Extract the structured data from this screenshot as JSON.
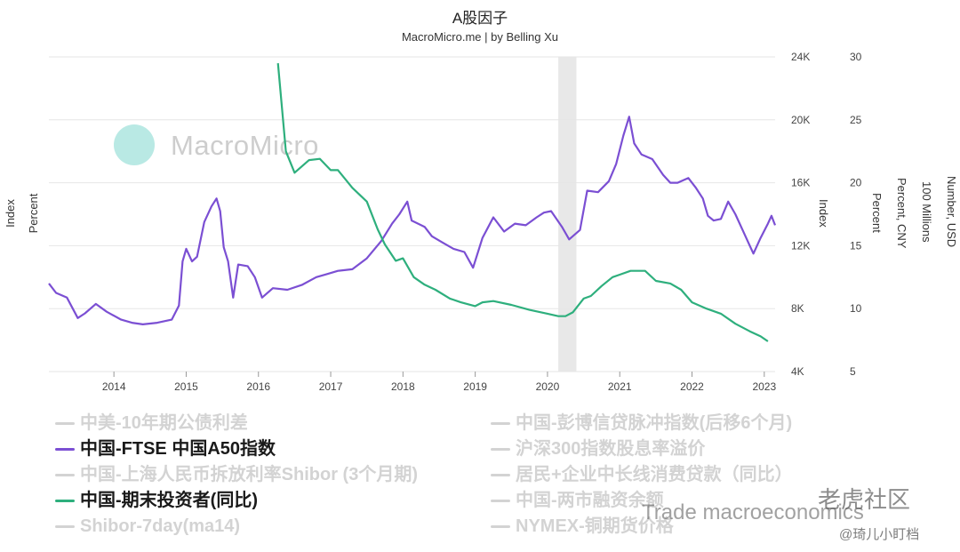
{
  "chart_data": {
    "type": "line",
    "title": "A股因子",
    "subtitle": "MacroMicro.me | by Belling Xu",
    "watermark": "MacroMicro",
    "x_ticks": [
      "2014",
      "2015",
      "2016",
      "2017",
      "2018",
      "2019",
      "2020",
      "2021",
      "2022",
      "2023"
    ],
    "x_range": [
      2013.1,
      2023.15
    ],
    "shaded_period": [
      2020.15,
      2020.4
    ],
    "axes": {
      "left_labels": [
        "Index",
        "Percent"
      ],
      "index_axis": {
        "label": "Index",
        "ticks": [
          "24K",
          "20K",
          "16K",
          "12K",
          "8K",
          "4K"
        ],
        "range": [
          4000,
          24000
        ]
      },
      "percent_axis": {
        "label": "Percent",
        "ticks": [
          "30",
          "25",
          "20",
          "15",
          "10",
          "5"
        ],
        "range": [
          5,
          30
        ]
      },
      "extra_labels": [
        "Percent, CNY",
        "100 Millions",
        "Number, USD"
      ]
    },
    "grid": true,
    "legend_position": "bottom",
    "series": [
      {
        "name": "中国-FTSE 中国A50指数",
        "color": "#7b4fd3",
        "axis": "index",
        "points": [
          [
            2013.1,
            9600
          ],
          [
            2013.2,
            9000
          ],
          [
            2013.35,
            8700
          ],
          [
            2013.5,
            7400
          ],
          [
            2013.6,
            7700
          ],
          [
            2013.75,
            8300
          ],
          [
            2013.9,
            7800
          ],
          [
            2014.1,
            7300
          ],
          [
            2014.25,
            7100
          ],
          [
            2014.4,
            7000
          ],
          [
            2014.6,
            7100
          ],
          [
            2014.8,
            7300
          ],
          [
            2014.9,
            8200
          ],
          [
            2014.95,
            11000
          ],
          [
            2015.0,
            11800
          ],
          [
            2015.08,
            11000
          ],
          [
            2015.15,
            11300
          ],
          [
            2015.25,
            13500
          ],
          [
            2015.35,
            14500
          ],
          [
            2015.42,
            15000
          ],
          [
            2015.47,
            14200
          ],
          [
            2015.52,
            11900
          ],
          [
            2015.58,
            11000
          ],
          [
            2015.65,
            8700
          ],
          [
            2015.72,
            10800
          ],
          [
            2015.85,
            10700
          ],
          [
            2015.95,
            10000
          ],
          [
            2016.05,
            8700
          ],
          [
            2016.2,
            9300
          ],
          [
            2016.4,
            9200
          ],
          [
            2016.6,
            9500
          ],
          [
            2016.8,
            10000
          ],
          [
            2016.95,
            10200
          ],
          [
            2017.1,
            10400
          ],
          [
            2017.3,
            10500
          ],
          [
            2017.5,
            11200
          ],
          [
            2017.7,
            12300
          ],
          [
            2017.85,
            13400
          ],
          [
            2017.95,
            14000
          ],
          [
            2018.06,
            14800
          ],
          [
            2018.12,
            13600
          ],
          [
            2018.3,
            13200
          ],
          [
            2018.4,
            12600
          ],
          [
            2018.55,
            12200
          ],
          [
            2018.7,
            11800
          ],
          [
            2018.85,
            11600
          ],
          [
            2018.97,
            10600
          ],
          [
            2019.1,
            12500
          ],
          [
            2019.25,
            13800
          ],
          [
            2019.4,
            12900
          ],
          [
            2019.55,
            13400
          ],
          [
            2019.7,
            13300
          ],
          [
            2019.85,
            13800
          ],
          [
            2019.95,
            14100
          ],
          [
            2020.05,
            14200
          ],
          [
            2020.2,
            13200
          ],
          [
            2020.3,
            12400
          ],
          [
            2020.45,
            13000
          ],
          [
            2020.55,
            15500
          ],
          [
            2020.7,
            15400
          ],
          [
            2020.85,
            16100
          ],
          [
            2020.95,
            17200
          ],
          [
            2021.05,
            19000
          ],
          [
            2021.13,
            20200
          ],
          [
            2021.2,
            18500
          ],
          [
            2021.3,
            17800
          ],
          [
            2021.45,
            17500
          ],
          [
            2021.6,
            16500
          ],
          [
            2021.7,
            16000
          ],
          [
            2021.8,
            16000
          ],
          [
            2021.95,
            16300
          ],
          [
            2022.05,
            15700
          ],
          [
            2022.15,
            15000
          ],
          [
            2022.22,
            13900
          ],
          [
            2022.3,
            13600
          ],
          [
            2022.4,
            13700
          ],
          [
            2022.5,
            14800
          ],
          [
            2022.6,
            14000
          ],
          [
            2022.7,
            13000
          ],
          [
            2022.8,
            12000
          ],
          [
            2022.85,
            11500
          ],
          [
            2022.95,
            12500
          ],
          [
            2023.05,
            13400
          ],
          [
            2023.1,
            13900
          ],
          [
            2023.15,
            13300
          ]
        ]
      },
      {
        "name": "中国-期末投资者(同比)",
        "color": "#2eaf7d",
        "axis": "percent",
        "points": [
          [
            2016.27,
            29.5
          ],
          [
            2016.38,
            22.5
          ],
          [
            2016.5,
            20.8
          ],
          [
            2016.7,
            21.8
          ],
          [
            2016.85,
            21.9
          ],
          [
            2017.0,
            21.0
          ],
          [
            2017.1,
            21.0
          ],
          [
            2017.3,
            19.6
          ],
          [
            2017.5,
            18.5
          ],
          [
            2017.65,
            16.3
          ],
          [
            2017.75,
            15.1
          ],
          [
            2017.9,
            13.8
          ],
          [
            2018.0,
            14.0
          ],
          [
            2018.15,
            12.5
          ],
          [
            2018.3,
            11.9
          ],
          [
            2018.45,
            11.5
          ],
          [
            2018.65,
            10.8
          ],
          [
            2018.8,
            10.5
          ],
          [
            2019.0,
            10.2
          ],
          [
            2019.1,
            10.5
          ],
          [
            2019.25,
            10.6
          ],
          [
            2019.5,
            10.3
          ],
          [
            2019.75,
            9.9
          ],
          [
            2020.0,
            9.6
          ],
          [
            2020.15,
            9.4
          ],
          [
            2020.25,
            9.4
          ],
          [
            2020.35,
            9.7
          ],
          [
            2020.5,
            10.8
          ],
          [
            2020.6,
            11.0
          ],
          [
            2020.75,
            11.8
          ],
          [
            2020.9,
            12.5
          ],
          [
            2021.0,
            12.7
          ],
          [
            2021.15,
            13.0
          ],
          [
            2021.35,
            13.0
          ],
          [
            2021.5,
            12.2
          ],
          [
            2021.7,
            12.0
          ],
          [
            2021.85,
            11.5
          ],
          [
            2022.0,
            10.5
          ],
          [
            2022.2,
            10.0
          ],
          [
            2022.4,
            9.6
          ],
          [
            2022.6,
            8.8
          ],
          [
            2022.8,
            8.2
          ],
          [
            2022.95,
            7.8
          ],
          [
            2023.05,
            7.4
          ]
        ]
      }
    ]
  },
  "legend": {
    "left": [
      {
        "label": "中美-10年期公债利差",
        "active": false,
        "color": "#d3d3d3"
      },
      {
        "label": "中国-FTSE 中国A50指数",
        "active": true,
        "color": "#7b4fd3"
      },
      {
        "label": "中国-上海人民币拆放利率Shibor (3个月期)",
        "active": false,
        "color": "#d3d3d3"
      },
      {
        "label": "中国-期末投资者(同比)",
        "active": true,
        "color": "#2eaf7d"
      },
      {
        "label": "Shibor-7day(ma14)",
        "active": false,
        "color": "#d3d3d3"
      }
    ],
    "right": [
      {
        "label": "中国-彭博信贷脉冲指数(后移6个月)",
        "active": false,
        "color": "#d3d3d3"
      },
      {
        "label": "沪深300指数股息率溢价",
        "active": false,
        "color": "#d3d3d3"
      },
      {
        "label": "居民+企业中长线消费贷款（同比）",
        "active": false,
        "color": "#d3d3d3"
      },
      {
        "label": "中国-两市融资余额",
        "active": false,
        "color": "#d3d3d3"
      },
      {
        "label": "NYMEX-铜期货价格",
        "active": false,
        "color": "#d3d3d3"
      }
    ]
  },
  "overlays": {
    "wm2": "老虎社区",
    "wm3": "Trade macroeconomics",
    "wm4": "@琦儿小盯档"
  }
}
